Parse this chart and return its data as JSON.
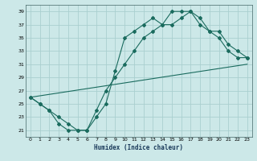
{
  "xlabel": "Humidex (Indice chaleur)",
  "bg_color": "#cce8e8",
  "line_color": "#1a6b5e",
  "grid_color": "#aacfcf",
  "xlim": [
    -0.5,
    23.5
  ],
  "ylim": [
    20.0,
    40.0
  ],
  "yticks": [
    21,
    23,
    25,
    27,
    29,
    31,
    33,
    35,
    37,
    39
  ],
  "xticks": [
    0,
    1,
    2,
    3,
    4,
    5,
    6,
    7,
    8,
    9,
    10,
    11,
    12,
    13,
    14,
    15,
    16,
    17,
    18,
    19,
    20,
    21,
    22,
    23
  ],
  "line1_x": [
    0,
    1,
    2,
    3,
    4,
    5,
    6,
    7,
    8,
    9,
    10,
    11,
    12,
    13,
    14,
    15,
    16,
    17,
    18,
    19,
    20,
    21,
    22,
    23
  ],
  "line1_y": [
    26,
    25,
    24,
    22,
    21,
    21,
    21,
    23,
    25,
    30,
    35,
    36,
    37,
    38,
    37,
    39,
    39,
    39,
    38,
    36,
    36,
    34,
    33,
    32
  ],
  "line1_markers": true,
  "line2_x": [
    0,
    1,
    2,
    3,
    4,
    5,
    6,
    7,
    8,
    9,
    10,
    11,
    12,
    13,
    14,
    15,
    16,
    17,
    18,
    19,
    20,
    21,
    22,
    23
  ],
  "line2_y": [
    26,
    25,
    24,
    23,
    22,
    21,
    21,
    24,
    27,
    29,
    31,
    33,
    35,
    36,
    37,
    37,
    38,
    39,
    37,
    36,
    35,
    33,
    32,
    32
  ],
  "line2_markers": true,
  "line3_x": [
    0,
    23
  ],
  "line3_y": [
    26,
    31
  ],
  "line3_markers": false
}
